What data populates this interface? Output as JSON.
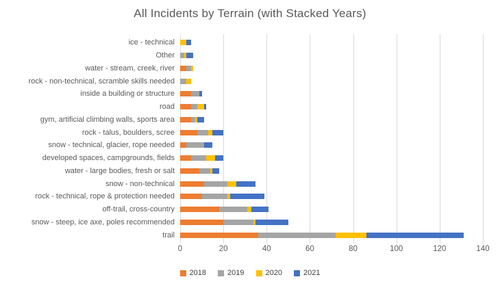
{
  "chart_data": {
    "type": "bar",
    "orientation": "horizontal",
    "stacked": true,
    "title": "All Incidents by Terrain (with Stacked Years)",
    "xlabel": "",
    "ylabel": "",
    "xlim": [
      0,
      140
    ],
    "x_ticks": [
      0,
      20,
      40,
      60,
      80,
      100,
      120,
      140
    ],
    "grid": true,
    "legend_position": "bottom",
    "categories": [
      "ice - technical",
      "Other",
      "water - stream, creek, river",
      "rock - non-technical, scramble skills needed",
      "inside a building or structure",
      "road",
      "gym, artificial climbing walls, sports area",
      "rock - talus, boulders, scree",
      "snow - technical, glacier, rope needed",
      "developed spaces,  campgrounds, fields",
      "water - large bodies, fresh or salt",
      "snow - non-technical",
      "rock - technical, rope & protection needed",
      "off-trail, cross-country",
      "snow - steep, ice axe, poles recommended",
      "trail"
    ],
    "series": [
      {
        "name": "2018",
        "color": "#ED7D31",
        "values": [
          0,
          0,
          3,
          0,
          5,
          5,
          5,
          8,
          3,
          5,
          9,
          11,
          10,
          18,
          20,
          36
        ]
      },
      {
        "name": "2019",
        "color": "#A5A5A5",
        "values": [
          0,
          2,
          2,
          3,
          4,
          3,
          2,
          5,
          8,
          7,
          5,
          11,
          12,
          13,
          14,
          36
        ]
      },
      {
        "name": "2020",
        "color": "#FFC000",
        "values": [
          3,
          1,
          1,
          2,
          0,
          3,
          1,
          2,
          0,
          4,
          1,
          4,
          1,
          2,
          1,
          14
        ]
      },
      {
        "name": "2021",
        "color": "#4472C4",
        "values": [
          2,
          3,
          0,
          0,
          1,
          1,
          3,
          5,
          4,
          4,
          3,
          9,
          16,
          8,
          15,
          45
        ]
      }
    ],
    "gridline_color": "#D9D9D9",
    "text_color": "#595959"
  }
}
